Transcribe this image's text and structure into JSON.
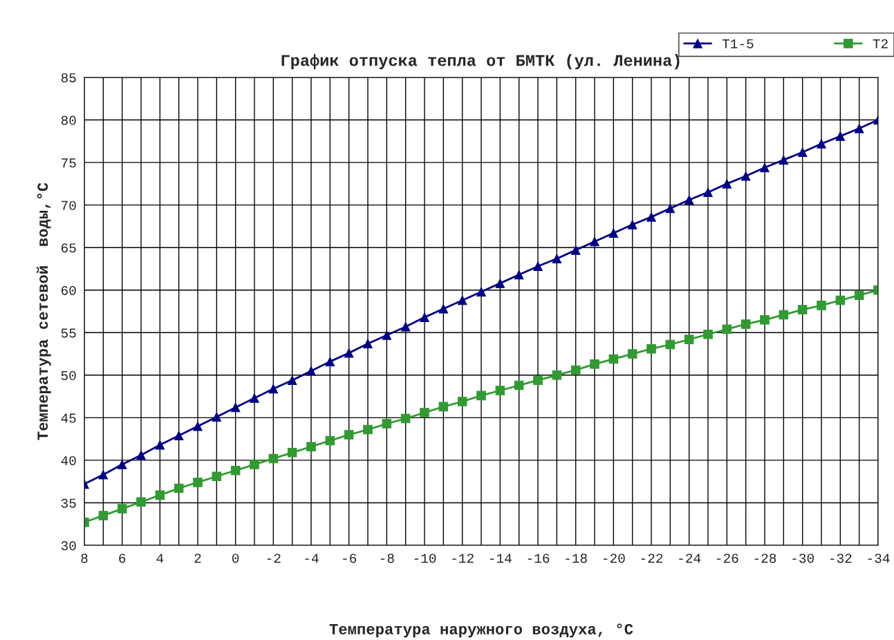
{
  "chart_data": {
    "type": "line",
    "title": "График отпуска тепла от БМТК (ул. Ленина)",
    "xlabel": "Температура наружного воздуха, °C",
    "ylabel": "Температура сетевой  воды,°C",
    "categories": [
      "8",
      null,
      "6",
      null,
      "4",
      null,
      "2",
      null,
      "0",
      null,
      "-2",
      null,
      "-4",
      null,
      "-6",
      null,
      "-8",
      null,
      "-10",
      null,
      "-12",
      null,
      "-14",
      null,
      "-16",
      null,
      "-18",
      null,
      "-20",
      null,
      "-22",
      null,
      "-24",
      null,
      "-26",
      null,
      "-28",
      null,
      "-30",
      null,
      "-32",
      null,
      "-34"
    ],
    "series": [
      {
        "name": "T1-5",
        "color": "#000080",
        "marker": "triangle",
        "values": [
          37.2,
          38.3,
          39.5,
          40.6,
          41.8,
          42.9,
          44.0,
          45.1,
          46.2,
          47.3,
          48.4,
          49.4,
          50.5,
          51.6,
          52.6,
          53.7,
          54.7,
          55.7,
          56.8,
          57.8,
          58.8,
          59.8,
          60.8,
          61.8,
          62.8,
          63.7,
          64.7,
          65.7,
          66.7,
          67.7,
          68.6,
          69.6,
          70.6,
          71.5,
          72.5,
          73.4,
          74.4,
          75.3,
          76.2,
          77.2,
          78.1,
          79.0,
          80.0
        ]
      },
      {
        "name": "T2",
        "color": "#339933",
        "marker": "square",
        "values": [
          32.7,
          33.5,
          34.3,
          35.1,
          35.9,
          36.7,
          37.4,
          38.1,
          38.8,
          39.5,
          40.2,
          40.9,
          41.6,
          42.3,
          43.0,
          43.6,
          44.3,
          44.9,
          45.6,
          46.3,
          46.9,
          47.6,
          48.2,
          48.8,
          49.4,
          50.0,
          50.6,
          51.3,
          51.9,
          52.5,
          53.1,
          53.6,
          54.2,
          54.8,
          55.4,
          56.0,
          56.5,
          57.1,
          57.7,
          58.2,
          58.8,
          59.4,
          60.0
        ]
      }
    ],
    "ylim": [
      30,
      85
    ],
    "yticks": [
      30,
      35,
      40,
      45,
      50,
      55,
      60,
      65,
      70,
      75,
      80,
      85
    ],
    "grid": true,
    "legend": "top right",
    "line_style": "solid"
  }
}
